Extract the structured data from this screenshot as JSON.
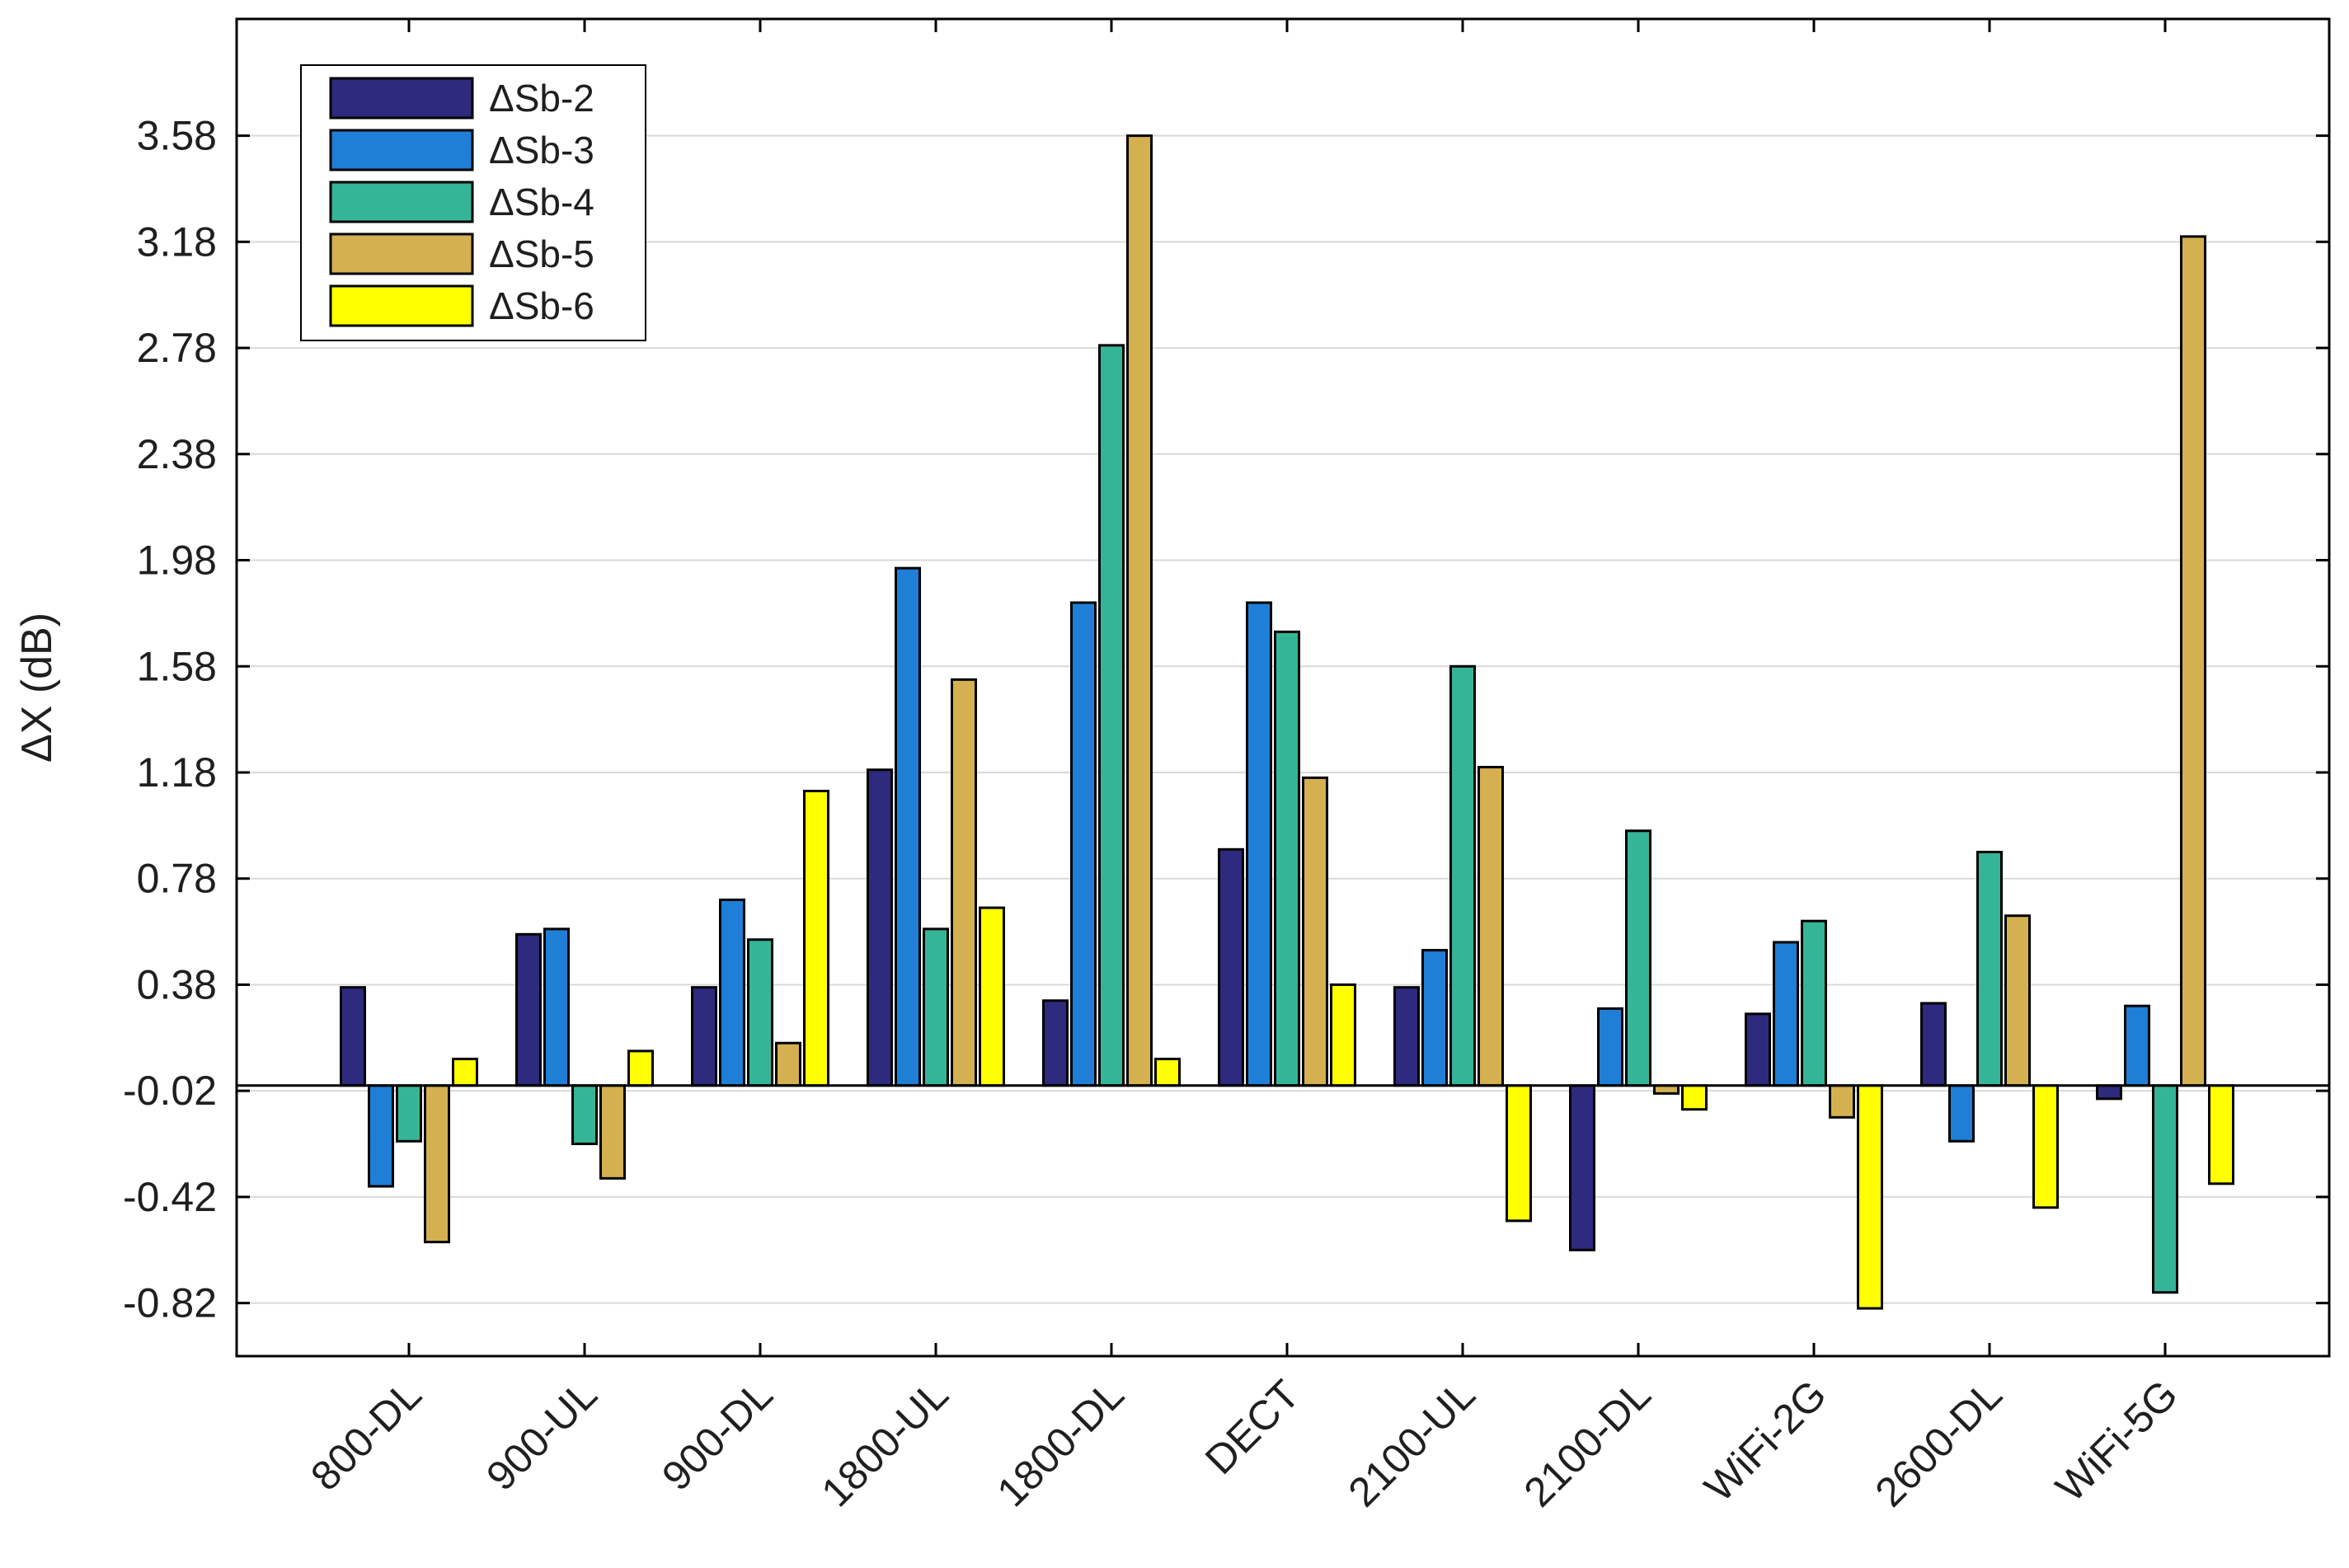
{
  "chart_data": {
    "type": "bar",
    "title": "",
    "xlabel": "",
    "ylabel": "ΔX (dB)",
    "ylim": [
      -1.02,
      4.02
    ],
    "grid": "horizontal",
    "legend_position": "top-left",
    "yticks": [
      -0.82,
      -0.42,
      -0.02,
      0.38,
      0.78,
      1.18,
      1.58,
      1.98,
      2.38,
      2.78,
      3.18,
      3.58
    ],
    "ytick_labels": [
      "-0.82",
      "-0.42",
      "-0.02",
      "0.38",
      "0.78",
      "1.18",
      "1.58",
      "1.98",
      "2.38",
      "2.78",
      "3.18",
      "3.58"
    ],
    "categories": [
      "800-DL",
      "900-UL",
      "900-DL",
      "1800-UL",
      "1800-DL",
      "DECT",
      "2100-UL",
      "2100-DL",
      "WiFi-2G",
      "2600-DL",
      "WiFi-5G"
    ],
    "series": [
      {
        "name": "ΔSb-2",
        "color": "#2e2a7e",
        "values": [
          0.37,
          0.57,
          0.37,
          1.19,
          0.32,
          0.89,
          0.37,
          -0.62,
          0.27,
          0.31,
          -0.05
        ]
      },
      {
        "name": "ΔSb-3",
        "color": "#1f7fd6",
        "values": [
          -0.38,
          0.59,
          0.7,
          1.95,
          1.82,
          1.82,
          0.51,
          0.29,
          0.54,
          -0.21,
          0.3
        ]
      },
      {
        "name": "ΔSb-4",
        "color": "#36b596",
        "values": [
          -0.21,
          -0.22,
          0.55,
          0.59,
          2.79,
          1.71,
          1.58,
          0.96,
          0.62,
          0.88,
          -0.78
        ]
      },
      {
        "name": "ΔSb-5",
        "color": "#d4b050",
        "values": [
          -0.59,
          -0.35,
          0.16,
          1.53,
          3.58,
          1.16,
          1.2,
          -0.03,
          -0.12,
          0.64,
          3.2
        ]
      },
      {
        "name": "ΔSb-6",
        "color": "#ffff00",
        "values": [
          0.1,
          0.13,
          1.11,
          0.67,
          0.1,
          0.38,
          -0.51,
          -0.09,
          -0.84,
          -0.46,
          -0.37
        ]
      }
    ]
  }
}
